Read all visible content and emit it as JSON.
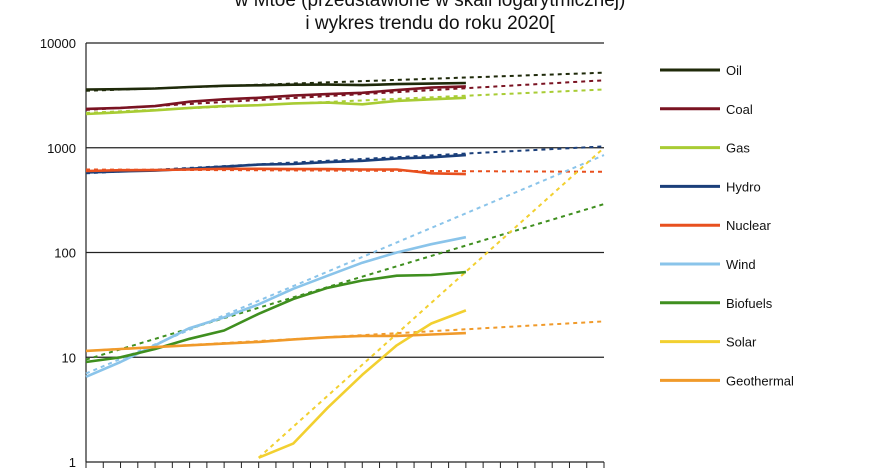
{
  "chart_data": {
    "type": "line",
    "title_lines": [
      "w Mtoe (przedstawione w skali logarytmicznej)",
      "i wykres trendu do roku 2020["
    ],
    "xlabel": "",
    "ylabel": "",
    "x_range": [
      1990,
      2020
    ],
    "y_scale": "log",
    "ylim": [
      1,
      10000
    ],
    "y_ticks": [
      {
        "value": 1,
        "label": "1"
      },
      {
        "value": 10,
        "label": "10"
      },
      {
        "value": 100,
        "label": "100"
      },
      {
        "value": 1000,
        "label": "1000"
      },
      {
        "value": 10000,
        "label": "10000"
      }
    ],
    "grid": true,
    "legend_position": "right",
    "series": [
      {
        "name": "Oil",
        "color": "#1f2a0a",
        "x": [
          1990,
          1992,
          1994,
          1996,
          1998,
          2000,
          2002,
          2004,
          2006,
          2008,
          2010,
          2012
        ],
        "values": [
          3600,
          3620,
          3680,
          3800,
          3900,
          3950,
          4000,
          4010,
          3960,
          4050,
          4100,
          4150
        ],
        "trend": {
          "x": [
            1990,
            2020
          ],
          "values": [
            3500,
            5200
          ]
        }
      },
      {
        "name": "Coal",
        "color": "#7a1322",
        "x": [
          1990,
          1992,
          1994,
          1996,
          1998,
          2000,
          2002,
          2004,
          2006,
          2008,
          2010,
          2012
        ],
        "values": [
          2350,
          2400,
          2500,
          2750,
          2900,
          3000,
          3150,
          3250,
          3350,
          3550,
          3750,
          3850
        ],
        "trend": {
          "x": [
            1990,
            2020
          ],
          "values": [
            2300,
            4400
          ]
        }
      },
      {
        "name": "Gas",
        "color": "#a8cc34",
        "x": [
          1990,
          1992,
          1994,
          1996,
          1998,
          2000,
          2002,
          2004,
          2006,
          2008,
          2010,
          2012
        ],
        "values": [
          2100,
          2180,
          2280,
          2400,
          2500,
          2550,
          2650,
          2700,
          2600,
          2800,
          2900,
          3000
        ],
        "trend": {
          "x": [
            1990,
            2020
          ],
          "values": [
            2150,
            3600
          ]
        }
      },
      {
        "name": "Hydro",
        "color": "#1b3f7a",
        "x": [
          1990,
          1992,
          1994,
          1996,
          1998,
          2000,
          2002,
          2004,
          2006,
          2008,
          2010,
          2012
        ],
        "values": [
          580,
          595,
          605,
          630,
          660,
          690,
          700,
          730,
          750,
          790,
          810,
          850
        ],
        "trend": {
          "x": [
            1990,
            2020
          ],
          "values": [
            570,
            1030
          ]
        }
      },
      {
        "name": "Nuclear",
        "color": "#e8501f",
        "x": [
          1990,
          1992,
          1994,
          1996,
          1998,
          2000,
          2002,
          2004,
          2006,
          2008,
          2010,
          2012
        ],
        "values": [
          600,
          610,
          612,
          620,
          630,
          630,
          625,
          625,
          620,
          620,
          570,
          560
        ],
        "trend": {
          "x": [
            1990,
            2020
          ],
          "values": [
            620,
            590
          ]
        }
      },
      {
        "name": "Wind",
        "color": "#8ac4ea",
        "x": [
          1990,
          1992,
          1994,
          1996,
          1998,
          2000,
          2002,
          2004,
          2006,
          2008,
          2010,
          2012
        ],
        "values": [
          6.5,
          9,
          13,
          19,
          24,
          32,
          45,
          60,
          80,
          100,
          120,
          140
        ],
        "trend": {
          "x": [
            1990,
            2020
          ],
          "values": [
            7,
            850
          ]
        }
      },
      {
        "name": "Biofuels",
        "color": "#3f8f1f",
        "x": [
          1990,
          1992,
          1994,
          1996,
          1998,
          2000,
          2002,
          2004,
          2006,
          2008,
          2010,
          2012
        ],
        "values": [
          9,
          10,
          12,
          15,
          18,
          26,
          36,
          46,
          54,
          60,
          61,
          65
        ],
        "trend": {
          "x": [
            1990,
            2020
          ],
          "values": [
            9.5,
            290
          ]
        }
      },
      {
        "name": "Solar",
        "color": "#f2d030",
        "x": [
          2000,
          2002,
          2004,
          2006,
          2008,
          2010,
          2012
        ],
        "values": [
          1.1,
          1.5,
          3.3,
          6.8,
          13,
          21,
          28
        ],
        "trend": {
          "x": [
            2000,
            2020
          ],
          "values": [
            1.1,
            1000
          ]
        }
      },
      {
        "name": "Geothermal",
        "color": "#f09a2a",
        "x": [
          1990,
          1992,
          1994,
          1996,
          1998,
          2000,
          2002,
          2004,
          2006,
          2008,
          2010,
          2012
        ],
        "values": [
          11.5,
          12,
          12.5,
          13,
          13.5,
          14,
          14.8,
          15.5,
          16,
          16,
          16.5,
          17
        ],
        "trend": {
          "x": [
            1990,
            2020
          ],
          "values": [
            11.5,
            22
          ]
        }
      }
    ]
  }
}
